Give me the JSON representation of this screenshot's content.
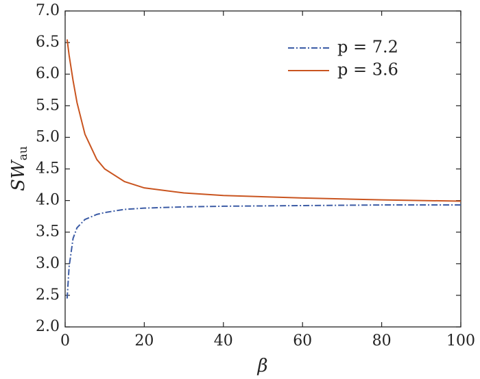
{
  "chart_data": {
    "type": "line",
    "xlabel": "β",
    "ylabel": {
      "main": "SW",
      "sub": "au"
    },
    "x": [
      0.5,
      1,
      2,
      3,
      5,
      8,
      10,
      15,
      20,
      30,
      40,
      60,
      80,
      100
    ],
    "series": [
      {
        "name": "p = 7.2",
        "color": "#3b5ba5",
        "dash": "dashdot",
        "values": [
          2.45,
          2.95,
          3.4,
          3.57,
          3.7,
          3.78,
          3.81,
          3.86,
          3.88,
          3.9,
          3.91,
          3.92,
          3.93,
          3.93
        ]
      },
      {
        "name": "p = 3.6",
        "color": "#c9541f",
        "dash": "solid",
        "values": [
          6.55,
          6.3,
          5.9,
          5.55,
          5.05,
          4.65,
          4.5,
          4.3,
          4.2,
          4.12,
          4.08,
          4.04,
          4.01,
          3.99
        ]
      }
    ],
    "xlim": [
      0,
      100
    ],
    "xticks": [
      0,
      20,
      40,
      60,
      80,
      100
    ],
    "ylim": [
      2,
      7
    ],
    "yticks": [
      {
        "value": 2,
        "label": "2.0"
      },
      2.5,
      {
        "value": 3,
        "label": "3.0"
      },
      3.5,
      {
        "value": 4,
        "label": "4.0"
      },
      4.5,
      {
        "value": 5,
        "label": "5.0"
      },
      5.5,
      {
        "value": 6,
        "label": "6.0"
      },
      6.5,
      {
        "value": 7,
        "label": "7.0"
      }
    ],
    "legend": "upper right"
  }
}
